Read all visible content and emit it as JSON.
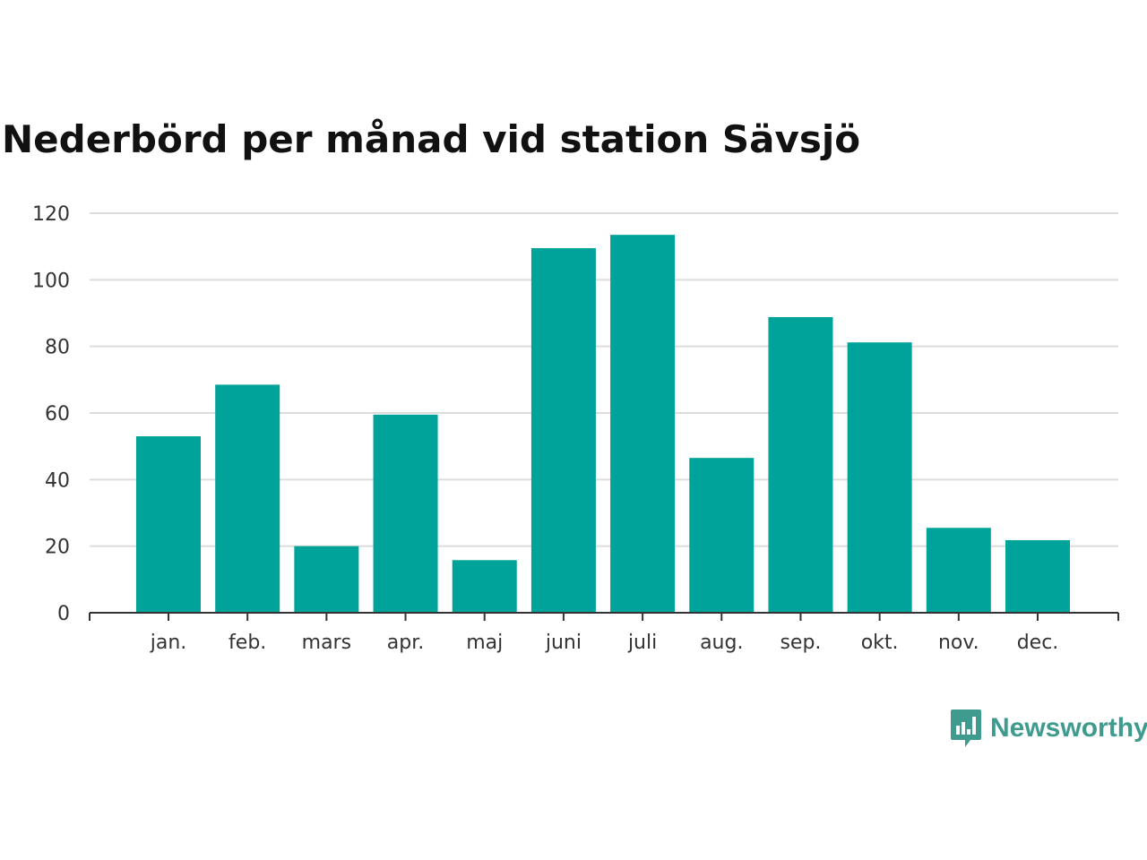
{
  "chart_data": {
    "type": "bar",
    "title": "Nederbörd per månad vid station Sävsjö",
    "xlabel": "",
    "ylabel": "",
    "categories": [
      "jan.",
      "feb.",
      "mars",
      "apr.",
      "maj",
      "juni",
      "juli",
      "aug.",
      "sep.",
      "okt.",
      "nov.",
      "dec."
    ],
    "values": [
      53,
      68.5,
      20,
      59.5,
      15.8,
      109.5,
      113.5,
      46.5,
      88.8,
      81.2,
      25.5,
      21.8
    ],
    "ylim": [
      0,
      120
    ],
    "yticks": [
      0,
      20,
      40,
      60,
      80,
      100,
      120
    ],
    "grid": true,
    "legend": "none",
    "bar_color": "#00a39a",
    "grid_color": "#dcdcdc",
    "axis_color": "#333333"
  },
  "brand": {
    "name": "Newsworthy",
    "icon": "newsworthy-logo-icon",
    "color": "#3e9b8e"
  }
}
